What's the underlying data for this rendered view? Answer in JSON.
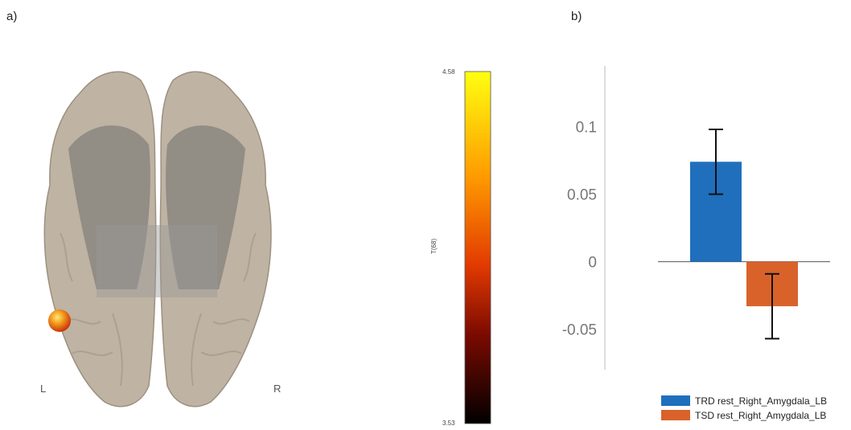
{
  "panel_a_label": "a)",
  "panel_b_label": "b)",
  "brain": {
    "left_label": "L",
    "right_label": "R"
  },
  "colorbar": {
    "max_label": "4.58",
    "min_label": "3.53",
    "axis_label": "T(68)",
    "max_value": 4.58,
    "min_value": 3.53
  },
  "chart_data": {
    "type": "bar",
    "categories": [
      "TRD rest_Right_Amygdala_LB",
      "TSD  rest_Right_Amygdala_LB"
    ],
    "series": [
      {
        "name": "TRD rest_Right_Amygdala_LB",
        "value": 0.074,
        "error_low": 0.05,
        "error_high": 0.098,
        "color": "#1f6fbd"
      },
      {
        "name": "TSD  rest_Right_Amygdala_LB",
        "value": -0.033,
        "error_low": -0.057,
        "error_high": -0.009,
        "color": "#d9622b"
      }
    ],
    "yticks": [
      "0.1",
      "0.05",
      "0",
      "-0.05"
    ],
    "ytick_values": [
      0.1,
      0.05,
      0,
      -0.05
    ],
    "ylim": [
      -0.08,
      0.145
    ],
    "xlabel": "",
    "ylabel": "",
    "legend_position": "bottom-right"
  }
}
